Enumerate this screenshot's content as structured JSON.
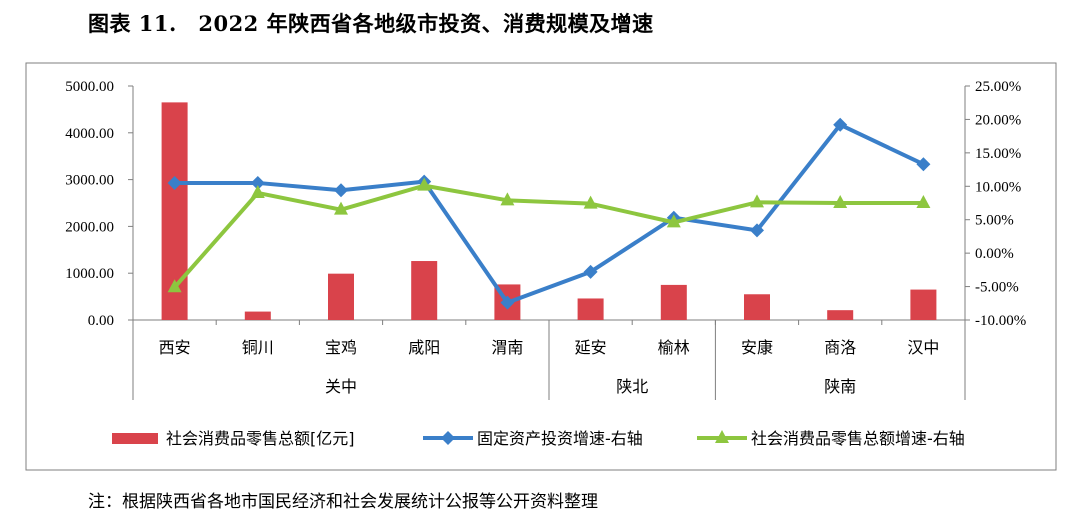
{
  "figure": {
    "title": "图表 11.　2022 年陕西省各地级市投资、消费规模及增速",
    "note": "注：根据陕西省各地市国民经济和社会发展统计公报等公开资料整理"
  },
  "chart_data": {
    "type": "bar",
    "title": "",
    "categories": [
      "西安",
      "铜川",
      "宝鸡",
      "咸阳",
      "渭南",
      "延安",
      "榆林",
      "安康",
      "商洛",
      "汉中"
    ],
    "groups": [
      {
        "name": "关中",
        "start": 0,
        "end": 4
      },
      {
        "name": "陕北",
        "start": 5,
        "end": 6
      },
      {
        "name": "陕南",
        "start": 7,
        "end": 9
      }
    ],
    "y_left": {
      "min": 0,
      "max": 5000,
      "ticks": [
        "0.00",
        "1000.00",
        "2000.00",
        "3000.00",
        "4000.00",
        "5000.00"
      ]
    },
    "y_right": {
      "min": -10,
      "max": 25,
      "ticks": [
        "-10.00%",
        "-5.00%",
        "0.00%",
        "5.00%",
        "10.00%",
        "15.00%",
        "20.00%",
        "25.00%"
      ]
    },
    "series": [
      {
        "name": "社会消费品零售总额[亿元]",
        "type": "bar",
        "axis": "left",
        "color": "#d9434b",
        "values": [
          4650,
          180,
          990,
          1260,
          760,
          460,
          750,
          550,
          210,
          650
        ]
      },
      {
        "name": "固定资产投资增速-右轴",
        "type": "line",
        "axis": "right",
        "color": "#3a7fc9",
        "marker": "diamond",
        "values": [
          10.5,
          10.5,
          9.4,
          10.7,
          -7.4,
          -2.8,
          5.3,
          3.4,
          19.2,
          13.3
        ]
      },
      {
        "name": "社会消费品零售总额增速-右轴",
        "type": "line",
        "axis": "right",
        "color": "#8dc63f",
        "marker": "triangle",
        "values": [
          -5.1,
          9.0,
          6.5,
          10.1,
          7.9,
          7.4,
          4.6,
          7.6,
          7.5,
          7.5
        ]
      }
    ],
    "grid": false,
    "legend": "bottom"
  }
}
